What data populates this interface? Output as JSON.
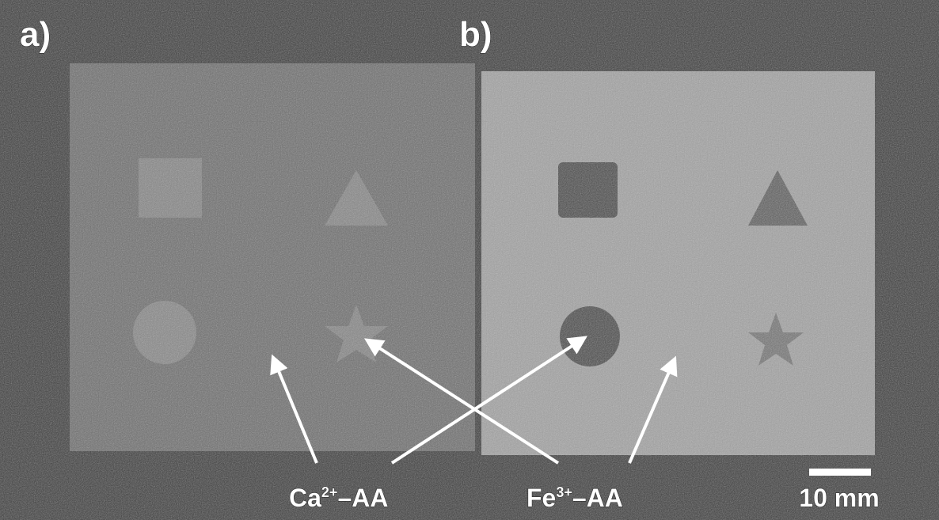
{
  "panels": [
    {
      "label": "a)"
    },
    {
      "label": "b)"
    }
  ],
  "annotations": [
    {
      "base": "Ca",
      "superscript": "2+",
      "suffix": "–AA"
    },
    {
      "base": "Fe",
      "superscript": "3+",
      "suffix": "–AA"
    }
  ],
  "scale_bar": {
    "label": "10 mm"
  }
}
